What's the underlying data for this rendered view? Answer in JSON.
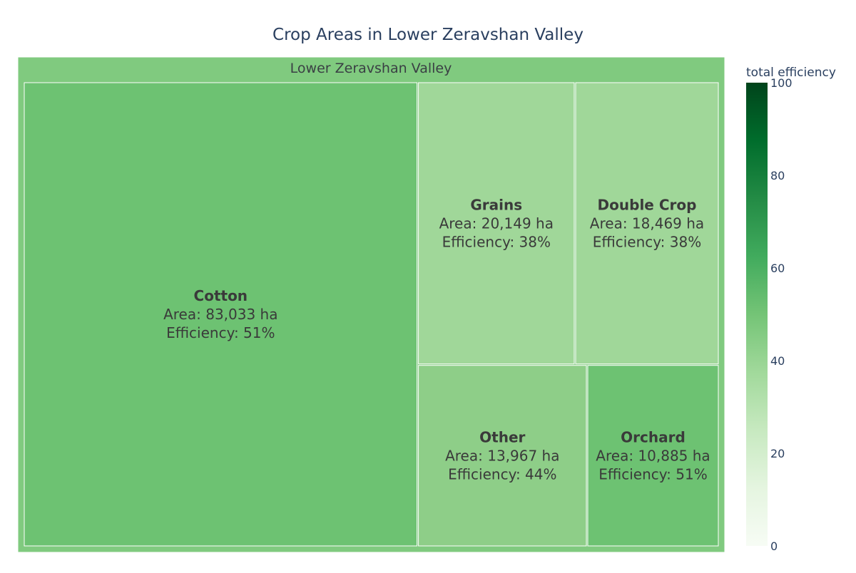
{
  "chart_data": {
    "type": "treemap",
    "title": "Crop Areas in Lower Zeravshan Valley",
    "root": {
      "label": "Lower Zeravshan Valley",
      "color": "#80ca7f"
    },
    "area_prefix": "Area: ",
    "area_unit": " ha",
    "efficiency_prefix": "Efficiency: ",
    "efficiency_unit": "%",
    "items": [
      {
        "name": "Cotton",
        "area": 83033,
        "area_text": "83,033",
        "efficiency": 51,
        "color": "#6dc272"
      },
      {
        "name": "Grains",
        "area": 20149,
        "area_text": "20,149",
        "efficiency": 38,
        "color": "#a0d799"
      },
      {
        "name": "Double Crop",
        "area": 18469,
        "area_text": "18,469",
        "efficiency": 38,
        "color": "#a0d799"
      },
      {
        "name": "Other",
        "area": 13967,
        "area_text": "13,967",
        "efficiency": 44,
        "color": "#8ece88"
      },
      {
        "name": "Orchard",
        "area": 10885,
        "area_text": "10,885",
        "efficiency": 51,
        "color": "#6dc272"
      }
    ],
    "colorbar": {
      "title": "total efficiency",
      "min": 0,
      "max": 100,
      "ticks": [
        0,
        20,
        40,
        60,
        80,
        100
      ],
      "colorscale": [
        "#f7fcf5",
        "#e5f5e0",
        "#c7e9c0",
        "#a1d99b",
        "#74c476",
        "#41ab5d",
        "#238b45",
        "#006d2c",
        "#00441b"
      ]
    }
  }
}
